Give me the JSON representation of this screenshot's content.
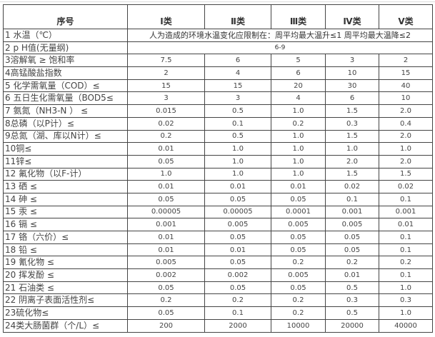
{
  "header": [
    "序号",
    "Ⅰ类",
    "Ⅱ类",
    "Ⅲ类",
    "Ⅳ类",
    "Ⅴ类"
  ],
  "rows": [
    {
      "label": "1 水温（℃）",
      "span": "人为造成的环境水温变化应限制在：周平均最大温升≤1 周平均最大温降≤2"
    },
    {
      "label": "2 p H值(无量纲)",
      "span": "6-9"
    },
    {
      "label": "3溶解氧 ≥ 饱和率",
      "values": [
        "7.5",
        "6",
        "5",
        "3",
        "2"
      ]
    },
    {
      "label": "4高锰酸盐指数",
      "values": [
        "2",
        "4",
        "6",
        "10",
        "15"
      ]
    },
    {
      "label": "5 化学需氧量（COD）≤",
      "values": [
        "15",
        "15",
        "20",
        "30",
        "40"
      ]
    },
    {
      "label": "6 五日生化需氧量（BOD5≤",
      "values": [
        "3",
        "3",
        "4",
        "6",
        "10"
      ]
    },
    {
      "label": "7 氨氮（NH3-N ） ≤",
      "values": [
        "0.015",
        "0.5",
        "1.0",
        "1.5",
        "2.0"
      ]
    },
    {
      "label": "8总磷（以P计）≤",
      "values": [
        "0.02",
        "0.1",
        "0.2",
        "0.3",
        "0.4"
      ]
    },
    {
      "label": "9总氮（湖、库以N计）≤",
      "values": [
        "0.2",
        "0.5",
        "1.0",
        "1.5",
        "2.0"
      ]
    },
    {
      "label": "10铜≤",
      "values": [
        "0.01",
        "1.0",
        "1.0",
        "1.0",
        "1.0"
      ]
    },
    {
      "label": "11锌≤",
      "values": [
        "0.05",
        "1.0",
        "1.0",
        "2.0",
        "2.0"
      ]
    },
    {
      "label": "12 氟化物（以F-计）",
      "values": [
        "1.0",
        "1.0",
        "1.0",
        "1.5",
        "1.5"
      ]
    },
    {
      "label": "13 硒 ≤",
      "values": [
        "0.01",
        "0.01",
        "0.01",
        "0.02",
        "0.02"
      ]
    },
    {
      "label": "14 砷 ≤",
      "values": [
        "0.05",
        "0.05",
        "0.05",
        "0.1",
        "0.1"
      ]
    },
    {
      "label": "15 汞 ≤",
      "values": [
        "0.00005",
        "0.00005",
        "0.0001",
        "0.001",
        "0.001"
      ]
    },
    {
      "label": "16 镉 ≤",
      "values": [
        "0.001",
        "0.005",
        "0.005",
        "0.005",
        "0.01"
      ]
    },
    {
      "label": "17 铬（六价）≤",
      "values": [
        "0.01",
        "0.05",
        "0.05",
        "0.05",
        "0.1"
      ]
    },
    {
      "label": "18 铅 ≤",
      "values": [
        "0.01",
        "0.01",
        "0.05",
        "0.05",
        "0.1"
      ]
    },
    {
      "label": "19 氰化物 ≤",
      "values": [
        "0.005",
        "0.05",
        "0.2",
        "0.2",
        "0.2"
      ]
    },
    {
      "label": "20 挥发酚 ≤",
      "values": [
        "0.002",
        "0.002",
        "0.005",
        "0.01",
        "0.1"
      ]
    },
    {
      "label": "21 石油类 ≤",
      "values": [
        "0.05",
        "0.05",
        "0.05",
        "0.5",
        "1.0"
      ]
    },
    {
      "label": "22 阴离子表面活性剂≤",
      "values": [
        "0.2",
        "0.2",
        "0.2",
        "0.3",
        "0.3"
      ]
    },
    {
      "label": "23硫化物≤",
      "values": [
        "0.05",
        "0.1",
        "0.2",
        "0.5",
        "1.0"
      ]
    },
    {
      "label": "24类大肠菌群（个/L）≤",
      "values": [
        "200",
        "2000",
        "10000",
        "20000",
        "40000"
      ]
    }
  ]
}
